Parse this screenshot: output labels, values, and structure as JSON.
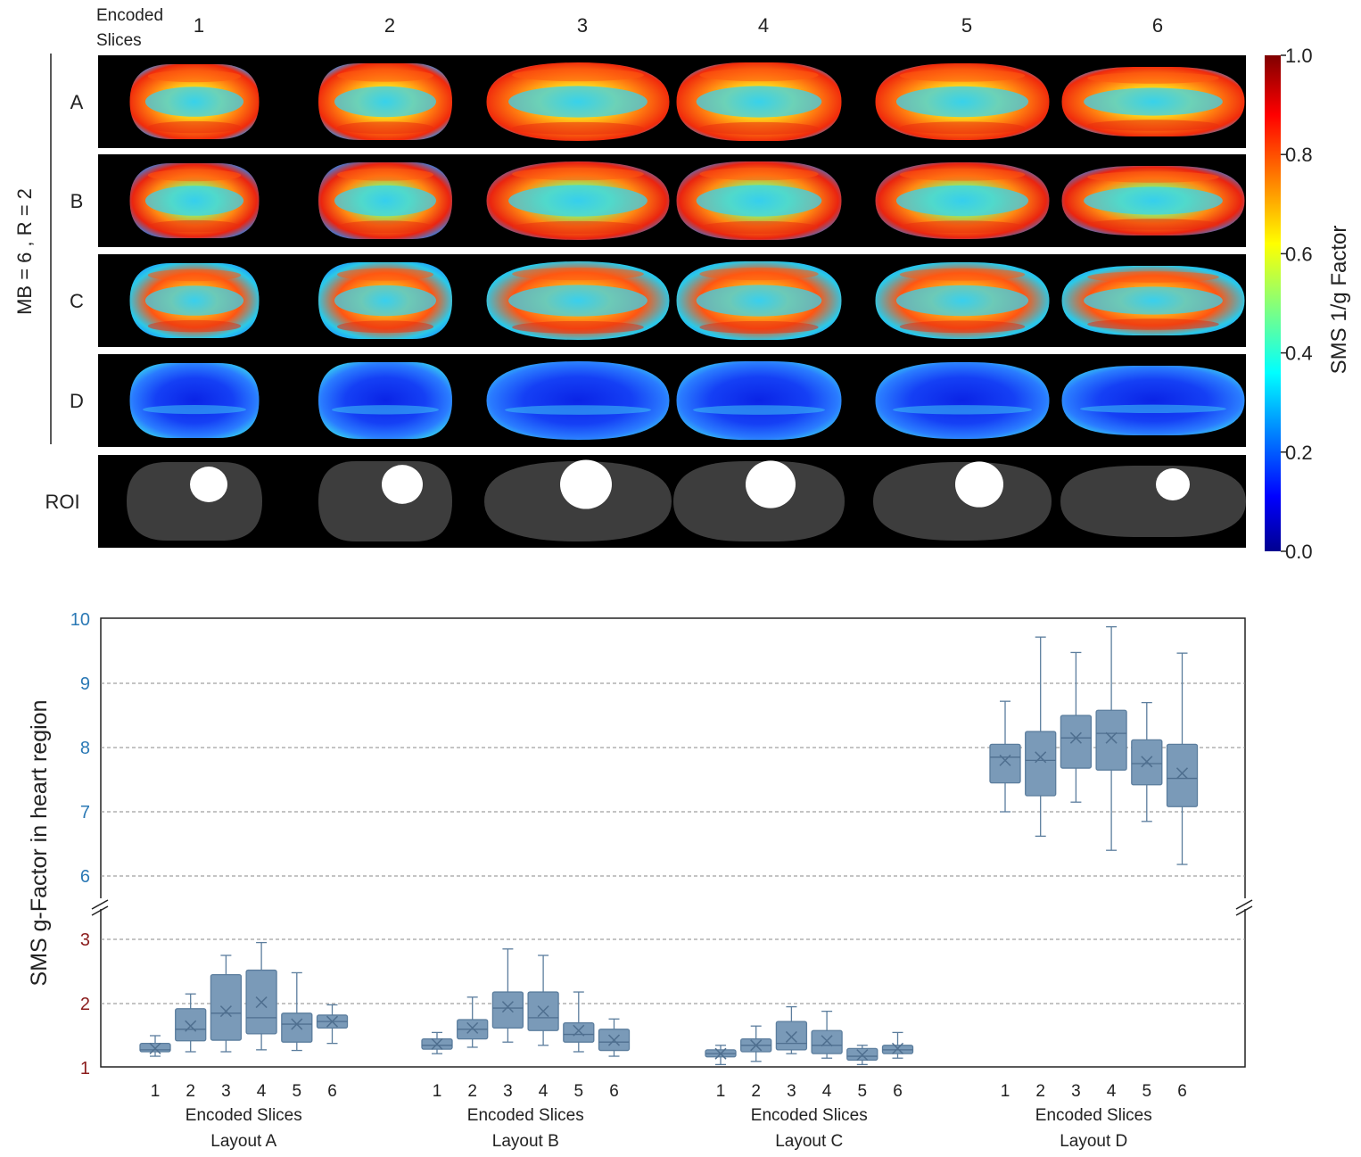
{
  "top_panel": {
    "corner_label_line1": "Encoded",
    "corner_label_line2": "Slices",
    "slice_numbers": [
      "1",
      "2",
      "3",
      "4",
      "5",
      "6"
    ],
    "row_labels": [
      "A",
      "B",
      "C",
      "D"
    ],
    "roi_label": "ROI",
    "group_label": "MB = 6 ,  R = 2",
    "colorbar": {
      "label": "SMS  1/g Factor",
      "ticks": [
        "1.0",
        "0.8",
        "0.6",
        "0.4",
        "0.2",
        "0.0"
      ],
      "colormap": "jet",
      "range": [
        0.0,
        1.0
      ]
    },
    "colors": {
      "background": "#000000",
      "roi_fill": "#3d3d3d",
      "roi_heart": "#ffffff"
    }
  },
  "chart_data": {
    "type": "box",
    "ylabel": "SMS  g-Factor in heart region",
    "y_axis_break": true,
    "y_lower_segment": {
      "range": [
        1,
        3
      ],
      "ticks": [
        "1",
        "2",
        "3"
      ],
      "tick_color": "#8b1c1c"
    },
    "y_upper_segment": {
      "range": [
        6,
        10
      ],
      "ticks": [
        "6",
        "7",
        "8",
        "9",
        "10"
      ],
      "tick_color": "#2b79b5"
    },
    "grid": "horizontal-dashed",
    "box_color": "#7a9ab8",
    "box_edge_color": "#5b7d9d",
    "groups": [
      {
        "xlabel": "Encoded Slices",
        "name": "Layout A",
        "categories": [
          "1",
          "2",
          "3",
          "4",
          "5",
          "6"
        ],
        "boxes": [
          {
            "min": 1.18,
            "q1": 1.25,
            "median": 1.28,
            "q3": 1.38,
            "max": 1.5,
            "mean": 1.3
          },
          {
            "min": 1.25,
            "q1": 1.42,
            "median": 1.6,
            "q3": 1.92,
            "max": 2.15,
            "mean": 1.65
          },
          {
            "min": 1.25,
            "q1": 1.43,
            "median": 1.85,
            "q3": 2.45,
            "max": 2.75,
            "mean": 1.88
          },
          {
            "min": 1.28,
            "q1": 1.53,
            "median": 1.78,
            "q3": 2.52,
            "max": 2.95,
            "mean": 2.02
          },
          {
            "min": 1.27,
            "q1": 1.4,
            "median": 1.68,
            "q3": 1.85,
            "max": 2.48,
            "mean": 1.68
          },
          {
            "min": 1.38,
            "q1": 1.62,
            "median": 1.72,
            "q3": 1.82,
            "max": 1.98,
            "mean": 1.72
          }
        ]
      },
      {
        "xlabel": "Encoded Slices",
        "name": "Layout B",
        "categories": [
          "1",
          "2",
          "3",
          "4",
          "5",
          "6"
        ],
        "boxes": [
          {
            "min": 1.22,
            "q1": 1.29,
            "median": 1.35,
            "q3": 1.45,
            "max": 1.55,
            "mean": 1.37
          },
          {
            "min": 1.32,
            "q1": 1.45,
            "median": 1.6,
            "q3": 1.75,
            "max": 2.1,
            "mean": 1.62
          },
          {
            "min": 1.4,
            "q1": 1.62,
            "median": 1.93,
            "q3": 2.18,
            "max": 2.85,
            "mean": 1.95
          },
          {
            "min": 1.35,
            "q1": 1.58,
            "median": 1.78,
            "q3": 2.18,
            "max": 2.75,
            "mean": 1.88
          },
          {
            "min": 1.25,
            "q1": 1.4,
            "median": 1.52,
            "q3": 1.7,
            "max": 2.18,
            "mean": 1.58
          },
          {
            "min": 1.18,
            "q1": 1.27,
            "median": 1.4,
            "q3": 1.6,
            "max": 1.76,
            "mean": 1.43
          }
        ]
      },
      {
        "xlabel": "Encoded Slices",
        "name": "Layout C",
        "categories": [
          "1",
          "2",
          "3",
          "4",
          "5",
          "6"
        ],
        "boxes": [
          {
            "min": 1.05,
            "q1": 1.17,
            "median": 1.22,
            "q3": 1.28,
            "max": 1.35,
            "mean": 1.22
          },
          {
            "min": 1.1,
            "q1": 1.25,
            "median": 1.35,
            "q3": 1.45,
            "max": 1.65,
            "mean": 1.35
          },
          {
            "min": 1.22,
            "q1": 1.28,
            "median": 1.38,
            "q3": 1.72,
            "max": 1.95,
            "mean": 1.48
          },
          {
            "min": 1.15,
            "q1": 1.22,
            "median": 1.35,
            "q3": 1.58,
            "max": 1.88,
            "mean": 1.42
          },
          {
            "min": 1.05,
            "q1": 1.12,
            "median": 1.18,
            "q3": 1.3,
            "max": 1.35,
            "mean": 1.2
          },
          {
            "min": 1.15,
            "q1": 1.22,
            "median": 1.28,
            "q3": 1.35,
            "max": 1.55,
            "mean": 1.3
          }
        ]
      },
      {
        "xlabel": "Encoded Slices",
        "name": "Layout D",
        "categories": [
          "1",
          "2",
          "3",
          "4",
          "5",
          "6"
        ],
        "boxes": [
          {
            "min": 7.0,
            "q1": 7.45,
            "median": 7.85,
            "q3": 8.05,
            "max": 8.72,
            "mean": 7.8
          },
          {
            "min": 6.62,
            "q1": 7.25,
            "median": 7.8,
            "q3": 8.25,
            "max": 9.72,
            "mean": 7.85
          },
          {
            "min": 7.15,
            "q1": 7.68,
            "median": 8.15,
            "q3": 8.5,
            "max": 9.48,
            "mean": 8.15
          },
          {
            "min": 6.4,
            "q1": 7.65,
            "median": 8.22,
            "q3": 8.58,
            "max": 9.88,
            "mean": 8.15
          },
          {
            "min": 6.85,
            "q1": 7.42,
            "median": 7.75,
            "q3": 8.12,
            "max": 8.7,
            "mean": 7.78
          },
          {
            "min": 6.18,
            "q1": 7.08,
            "median": 7.52,
            "q3": 8.05,
            "max": 9.47,
            "mean": 7.6
          }
        ]
      }
    ]
  }
}
